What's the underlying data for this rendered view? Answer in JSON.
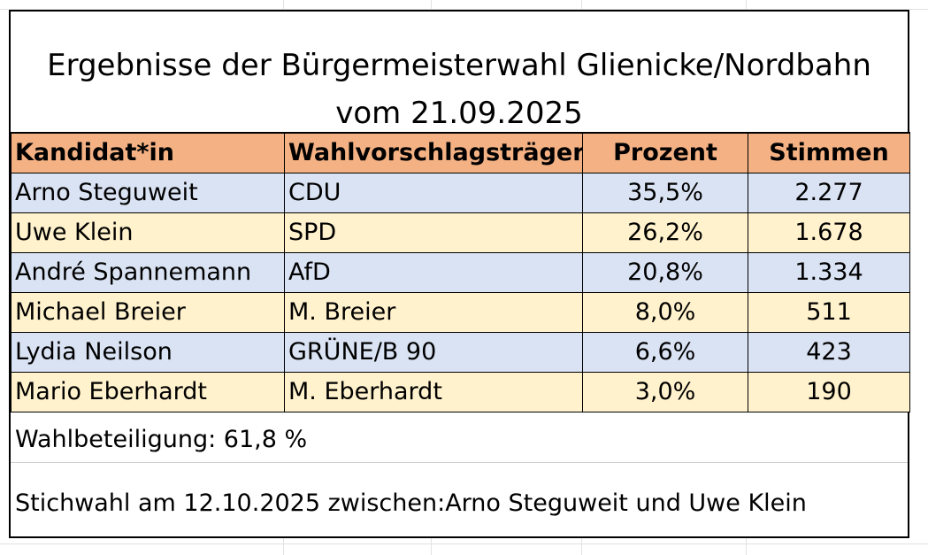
{
  "title": {
    "line1": "Ergebnisse der Bürgermeisterwahl Glienicke/Nordbahn",
    "line2": "vom 21.09.2025"
  },
  "table": {
    "headers": [
      "Kandidat*in",
      "Wahlvorschlagsträger",
      "Prozent",
      "Stimmen"
    ],
    "rows": [
      {
        "candidate": "Arno Steguweit",
        "party": "CDU",
        "percent": "35,5%",
        "votes": "2.277"
      },
      {
        "candidate": "Uwe Klein",
        "party": "SPD",
        "percent": "26,2%",
        "votes": "1.678"
      },
      {
        "candidate": "André Spannemann",
        "party": "AfD",
        "percent": "20,8%",
        "votes": "1.334"
      },
      {
        "candidate": "Michael Breier",
        "party": "M. Breier",
        "percent": "8,0%",
        "votes": "511"
      },
      {
        "candidate": "Lydia Neilson",
        "party": "GRÜNE/B 90",
        "percent": "6,6%",
        "votes": "423"
      },
      {
        "candidate": "Mario Eberhardt",
        "party": "M. Eberhardt",
        "percent": "3,0%",
        "votes": "190"
      }
    ]
  },
  "footer": {
    "turnout": "Wahlbeteiligung: 61,8 %",
    "runoff": "Stichwahl am 12.10.2025 zwischen:Arno Steguweit und Uwe Klein"
  },
  "colors": {
    "header_bg": "#f4b183",
    "row_blue": "#dae3f3",
    "row_yellow": "#fff2cc"
  }
}
